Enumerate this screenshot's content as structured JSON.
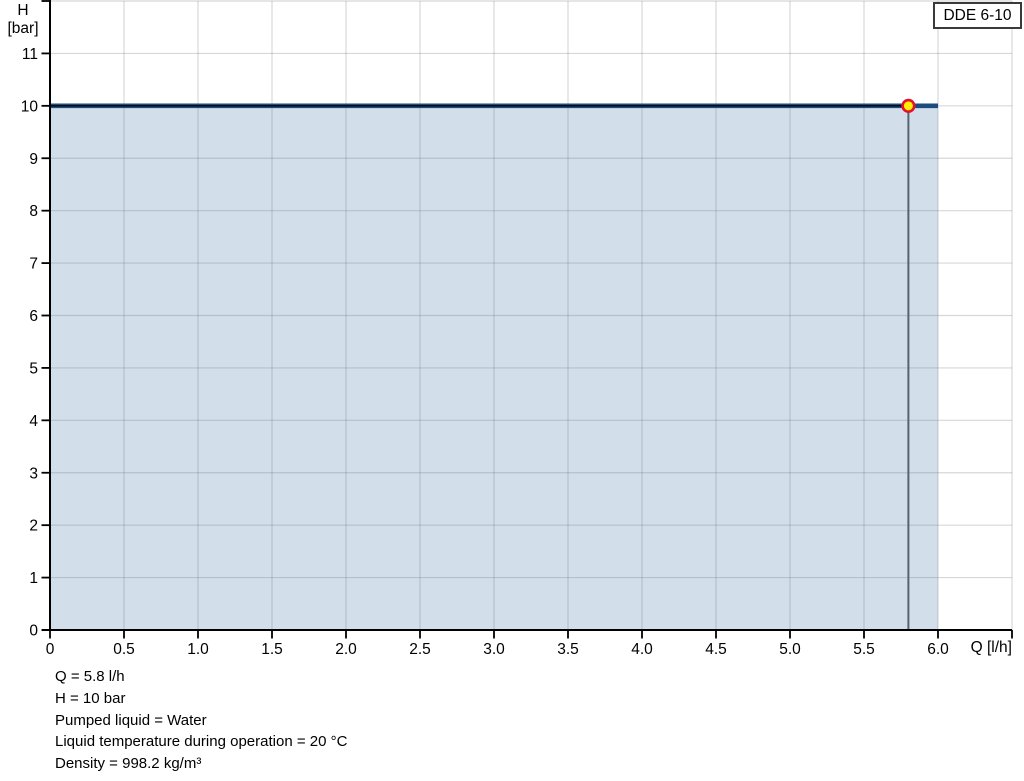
{
  "pump": {
    "model": "DDE 6-10"
  },
  "chart_data": {
    "type": "area",
    "grid": true,
    "legend": "none",
    "x_axis": {
      "label": "Q [l/h]",
      "min": 0,
      "max": 6.5,
      "gridline_step": 0.5,
      "ticks": [
        {
          "value": 0,
          "label": "0"
        },
        {
          "value": 0.5,
          "label": "0.5"
        },
        {
          "value": 1,
          "label": "1.0"
        },
        {
          "value": 1.5,
          "label": "1.5"
        },
        {
          "value": 2,
          "label": "2.0"
        },
        {
          "value": 2.5,
          "label": "2.5"
        },
        {
          "value": 3,
          "label": "3.0"
        },
        {
          "value": 3.5,
          "label": "3.5"
        },
        {
          "value": 4,
          "label": "4.0"
        },
        {
          "value": 4.5,
          "label": "4.5"
        },
        {
          "value": 5,
          "label": "5.0"
        },
        {
          "value": 5.5,
          "label": "5.5"
        },
        {
          "value": 6,
          "label": "6.0"
        },
        {
          "value": 6.5,
          "label": ""
        }
      ]
    },
    "y_axis": {
      "quantity": "H",
      "unit": "[bar]",
      "min": 0,
      "max": 12,
      "gridline_step": 1,
      "ticks": [
        {
          "value": 0,
          "label": "0"
        },
        {
          "value": 1,
          "label": "1"
        },
        {
          "value": 2,
          "label": "2"
        },
        {
          "value": 3,
          "label": "3"
        },
        {
          "value": 4,
          "label": "4"
        },
        {
          "value": 5,
          "label": "5"
        },
        {
          "value": 6,
          "label": "6"
        },
        {
          "value": 7,
          "label": "7"
        },
        {
          "value": 8,
          "label": "8"
        },
        {
          "value": 9,
          "label": "9"
        },
        {
          "value": 10,
          "label": "10"
        },
        {
          "value": 11,
          "label": "11"
        },
        {
          "value": 12,
          "label": ""
        }
      ]
    },
    "series": [
      {
        "name": "DDE 6-10",
        "points": [
          {
            "x": 0,
            "y": 10
          },
          {
            "x": 6,
            "y": 10
          }
        ],
        "color": "#1b4c7e",
        "area_fill": "#d2deea"
      }
    ],
    "operating_point": {
      "x": 5.8,
      "y": 10
    }
  },
  "colors": {
    "curve": "#1b4c7e",
    "area_fill": "#d2deea",
    "marker_fill": "#fff200",
    "marker_ring": "#e8112d",
    "crosshair_vertical": "#566470",
    "crosshair_horizontal": "#000000",
    "axis": "#000000",
    "gridline": "rgba(105,115,125,0.28)"
  },
  "info_lines": [
    "Q = 5.8 l/h",
    "H = 10 bar",
    "Pumped liquid = Water",
    "Liquid temperature during operation = 20 °C",
    "Density = 998.2 kg/m³"
  ]
}
